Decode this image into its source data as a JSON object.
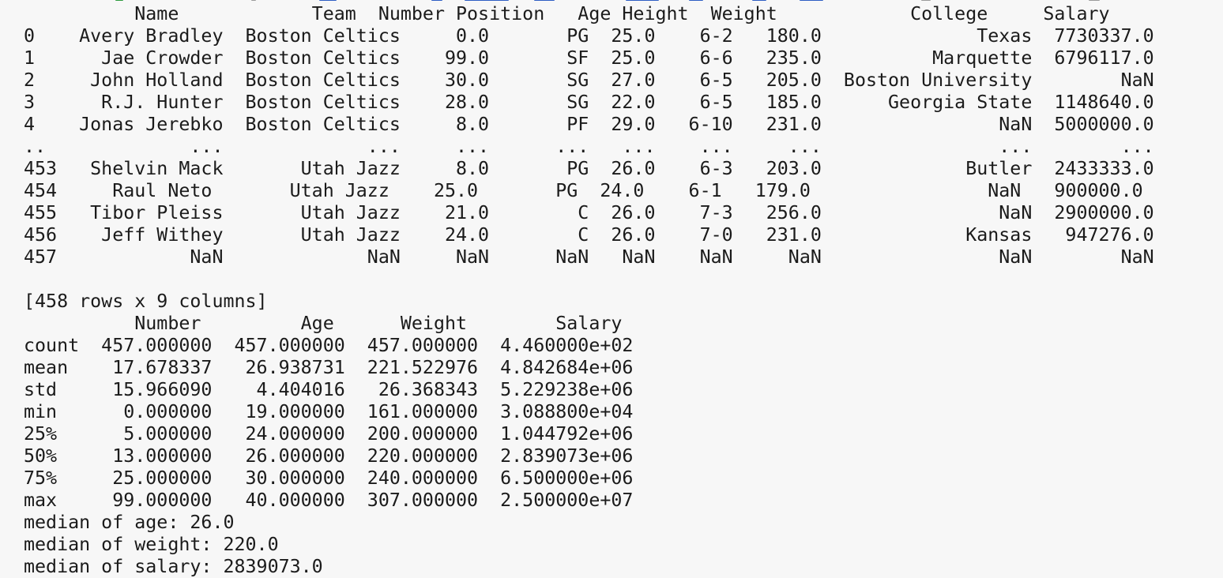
{
  "colors": {
    "background": "#f7f7f7",
    "text": "#1b1b1b",
    "fragment_green": "#2e9b3e",
    "fragment_blue": "#2f5fc4"
  },
  "dataframe": {
    "header": "          Name            Team  Number Position   Age Height  Weight            College     Salary",
    "rows": [
      "0    Avery Bradley  Boston Celtics     0.0       PG  25.0    6-2   180.0              Texas  7730337.0",
      "1      Jae Crowder  Boston Celtics    99.0       SF  25.0    6-6   235.0          Marquette  6796117.0",
      "2     John Holland  Boston Celtics    30.0       SG  27.0    6-5   205.0  Boston University        NaN",
      "3      R.J. Hunter  Boston Celtics    28.0       SG  22.0    6-5   185.0      Georgia State  1148640.0",
      "4    Jonas Jerebko  Boston Celtics     8.0       PF  29.0   6-10   231.0                NaN  5000000.0",
      "..             ...             ...     ...      ...   ...    ...     ...                ...        ...",
      "453   Shelvin Mack       Utah Jazz     8.0       PG  26.0    6-3   203.0             Butler  2433333.0",
      "454     Raul Neto       Utah Jazz    25.0       PG  24.0    6-1   179.0                NaN   900000.0",
      "455   Tibor Pleiss       Utah Jazz    21.0        C  26.0    7-3   256.0                NaN  2900000.0",
      "456    Jeff Withey       Utah Jazz    24.0        C  26.0    7-0   231.0             Kansas   947276.0",
      "457            NaN             NaN     NaN      NaN   NaN    NaN     NaN                NaN        NaN"
    ],
    "shape_note": "[458 rows x 9 columns]"
  },
  "describe": {
    "header": "          Number         Age      Weight        Salary",
    "rows": [
      "count  457.000000  457.000000  457.000000  4.460000e+02",
      "mean    17.678337   26.938731  221.522976  4.842684e+06",
      "std     15.966090    4.404016   26.368343  5.229238e+06",
      "min      0.000000   19.000000  161.000000  3.088800e+04",
      "25%      5.000000   24.000000  200.000000  1.044792e+06",
      "50%     13.000000   26.000000  220.000000  2.839073e+06",
      "75%     25.000000   30.000000  240.000000  6.500000e+06",
      "max     99.000000   40.000000  307.000000  2.500000e+07"
    ]
  },
  "medians": [
    "median of age: 26.0",
    "median of weight: 220.0",
    "median of salary: 2839073.0"
  ]
}
